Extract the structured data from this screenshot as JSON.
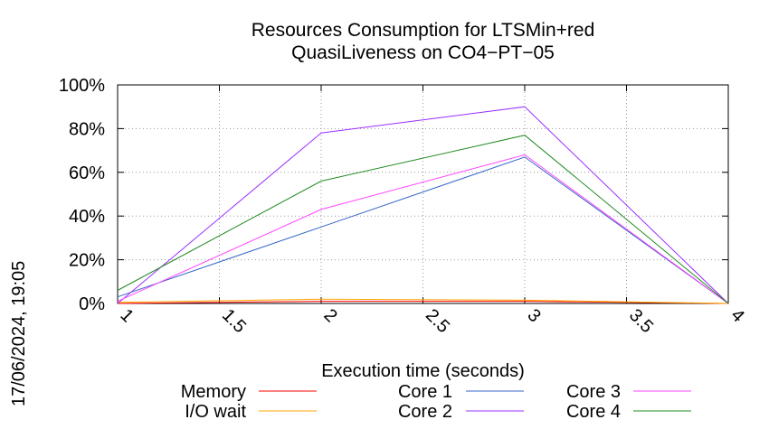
{
  "chart_data": {
    "type": "line",
    "title": [
      "Resources Consumption for LTSMin+red",
      "QuasiLiveness on CO4−PT−05"
    ],
    "xlabel": "Execution time (seconds)",
    "ylabel": "",
    "xlim": [
      1,
      4
    ],
    "ylim": [
      0,
      100
    ],
    "xticks": [
      1,
      1.5,
      2,
      2.5,
      3,
      3.5,
      4
    ],
    "xtick_labels": [
      "1",
      "1.5",
      "2",
      "2.5",
      "3",
      "3.5",
      "4"
    ],
    "yticks": [
      0,
      20,
      40,
      60,
      80,
      100
    ],
    "ytick_labels": [
      "0%",
      "20%",
      "40%",
      "60%",
      "80%",
      "100%"
    ],
    "grid": true,
    "legend_placement": "bottom",
    "x": [
      1,
      2,
      3,
      4
    ],
    "series": [
      {
        "name": "Memory",
        "color": "#ff0000",
        "values": [
          0,
          1,
          1,
          0
        ]
      },
      {
        "name": "I/O wait",
        "color": "#ffa500",
        "values": [
          0.5,
          2,
          1.5,
          0
        ]
      },
      {
        "name": "Core 1",
        "color": "#3465c8",
        "values": [
          3,
          35,
          67,
          0
        ]
      },
      {
        "name": "Core 2",
        "color": "#9b30ff",
        "values": [
          0,
          78,
          90,
          0
        ]
      },
      {
        "name": "Core 3",
        "color": "#ff44ff",
        "values": [
          1,
          43,
          68,
          0
        ]
      },
      {
        "name": "Core 4",
        "color": "#228b22",
        "values": [
          6,
          56,
          77,
          0
        ]
      }
    ]
  },
  "timestamp": "17/06/2024, 19:05"
}
